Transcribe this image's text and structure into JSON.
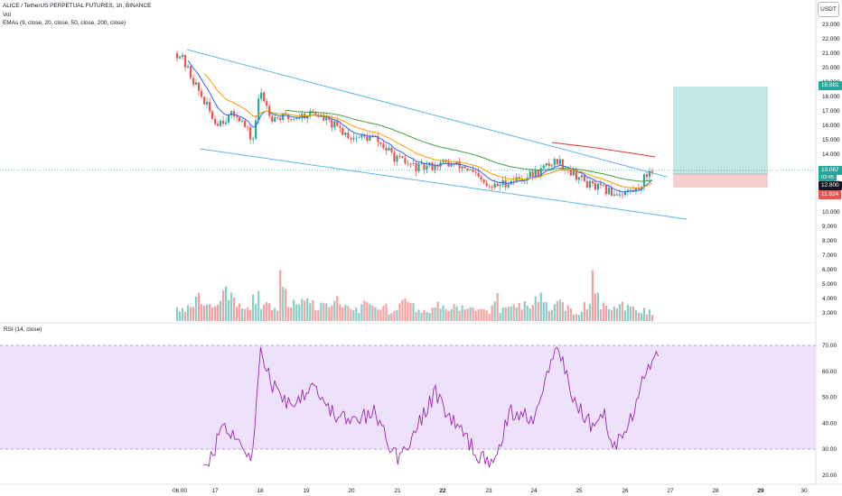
{
  "header": {
    "symbol_line": "ALICE / TetherUS PERPETUAL FUTURES, 1h, BINANCE",
    "vol_label": "Vol",
    "ema_label": "EMAs (9, close, 20, close, 50, close, 200, close)"
  },
  "currency_button": "USDT",
  "rsi_label": "RSI (14, close)",
  "price_axis": [
    "23.000",
    "22.000",
    "21.000",
    "20.000",
    "19.000",
    "18.000",
    "17.000",
    "16.000",
    "15.000",
    "14.000",
    "13.000",
    "12.000",
    "11.000",
    "10.000",
    "9.000",
    "8.000",
    "7.000",
    "6.000",
    "5.000",
    "4.000",
    "3.000"
  ],
  "rsi_axis": [
    "70.00",
    "60.00",
    "50.00",
    "40.00",
    "30.00",
    "20.00"
  ],
  "time_axis": [
    "06:00",
    "17",
    "18",
    "19",
    "20",
    "21",
    "22",
    "23",
    "24",
    "25",
    "26",
    "27",
    "28",
    "29",
    "30"
  ],
  "price_labels": {
    "target": "18.881",
    "last_price": "13.087",
    "countdown": "03:45",
    "entry": "12.800",
    "stop": "11.924"
  },
  "colors": {
    "up": "#26a69a",
    "down": "#ef5350",
    "ema9": "#2962ff",
    "ema20": "#ff9800",
    "ema50": "#43a047",
    "ema200": "#e53935",
    "rsi_line": "#9c27b0",
    "rsi_band": "#ede1fb",
    "trendline": "#5db8e8",
    "profit_zone": "#b9e3df",
    "loss_zone": "#f9c9c9"
  },
  "chart_data": {
    "type": "candlestick",
    "symbol": "ALICE / TetherUS PERPETUAL FUTURES",
    "interval": "1h",
    "exchange": "BINANCE",
    "price_range": [
      2.8,
      24.5
    ],
    "close_path": [
      {
        "x": "16 06:00",
        "y": 21.0
      },
      {
        "x": "16 18:00",
        "y": 17.8
      },
      {
        "x": "17 00:00",
        "y": 16.2
      },
      {
        "x": "17 12:00",
        "y": 16.8
      },
      {
        "x": "17 20:00",
        "y": 14.9
      },
      {
        "x": "18 00:00",
        "y": 18.4
      },
      {
        "x": "18 06:00",
        "y": 16.6
      },
      {
        "x": "18 16:00",
        "y": 16.5
      },
      {
        "x": "19 04:00",
        "y": 16.9
      },
      {
        "x": "19 12:00",
        "y": 16.2
      },
      {
        "x": "20 00:00",
        "y": 15.2
      },
      {
        "x": "20 12:00",
        "y": 15.1
      },
      {
        "x": "21 00:00",
        "y": 13.6
      },
      {
        "x": "21 12:00",
        "y": 13.0
      },
      {
        "x": "22 00:00",
        "y": 13.4
      },
      {
        "x": "22 12:00",
        "y": 13.1
      },
      {
        "x": "23 00:00",
        "y": 11.6
      },
      {
        "x": "23 12:00",
        "y": 12.2
      },
      {
        "x": "24 00:00",
        "y": 12.6
      },
      {
        "x": "24 12:00",
        "y": 13.6
      },
      {
        "x": "24 20:00",
        "y": 12.8
      },
      {
        "x": "25 06:00",
        "y": 11.8
      },
      {
        "x": "25 18:00",
        "y": 11.3
      },
      {
        "x": "26 06:00",
        "y": 11.5
      },
      {
        "x": "26 14:00",
        "y": 13.087
      }
    ],
    "volume_relative": [
      0.25,
      0.3,
      0.45,
      0.3,
      0.35,
      0.55,
      0.4,
      0.3,
      0.5,
      0.35,
      0.3,
      0.95,
      0.35,
      0.5,
      0.4,
      0.3,
      0.3,
      0.45,
      0.3,
      0.25,
      0.35,
      0.25,
      0.3,
      0.2,
      0.4,
      0.3,
      0.2,
      0.25,
      0.3,
      0.2,
      0.3,
      0.25,
      0.3,
      0.2,
      0.5,
      0.25,
      0.3,
      0.35,
      0.25,
      0.45,
      0.3,
      0.35,
      0.25,
      0.2,
      0.3,
      0.85,
      0.3,
      0.25,
      0.3,
      0.35,
      0.25,
      0.2
    ],
    "rsi": [
      {
        "x": "16 18:00",
        "y": 22.5
      },
      {
        "x": "17 00:00",
        "y": 30
      },
      {
        "x": "17 04:00",
        "y": 41
      },
      {
        "x": "17 12:00",
        "y": 34
      },
      {
        "x": "17 20:00",
        "y": 27
      },
      {
        "x": "18 00:00",
        "y": 68
      },
      {
        "x": "18 06:00",
        "y": 55
      },
      {
        "x": "18 16:00",
        "y": 47
      },
      {
        "x": "19 04:00",
        "y": 56
      },
      {
        "x": "19 12:00",
        "y": 45
      },
      {
        "x": "20 00:00",
        "y": 40
      },
      {
        "x": "20 12:00",
        "y": 44
      },
      {
        "x": "21 00:00",
        "y": 26
      },
      {
        "x": "21 12:00",
        "y": 40
      },
      {
        "x": "21 20:00",
        "y": 52
      },
      {
        "x": "22 06:00",
        "y": 40
      },
      {
        "x": "23 00:00",
        "y": 23
      },
      {
        "x": "23 12:00",
        "y": 44
      },
      {
        "x": "24 00:00",
        "y": 43
      },
      {
        "x": "24 08:00",
        "y": 62
      },
      {
        "x": "24 12:00",
        "y": 73
      },
      {
        "x": "24 20:00",
        "y": 50
      },
      {
        "x": "25 06:00",
        "y": 40
      },
      {
        "x": "25 12:00",
        "y": 46
      },
      {
        "x": "25 18:00",
        "y": 31
      },
      {
        "x": "26 06:00",
        "y": 47
      },
      {
        "x": "26 12:00",
        "y": 62
      },
      {
        "x": "26 18:00",
        "y": 68.5
      }
    ],
    "rsi_bands": [
      30,
      70
    ],
    "position_tool": {
      "target": 18.881,
      "entry": 12.8,
      "stop": 11.924
    },
    "last_price": 13.087
  }
}
